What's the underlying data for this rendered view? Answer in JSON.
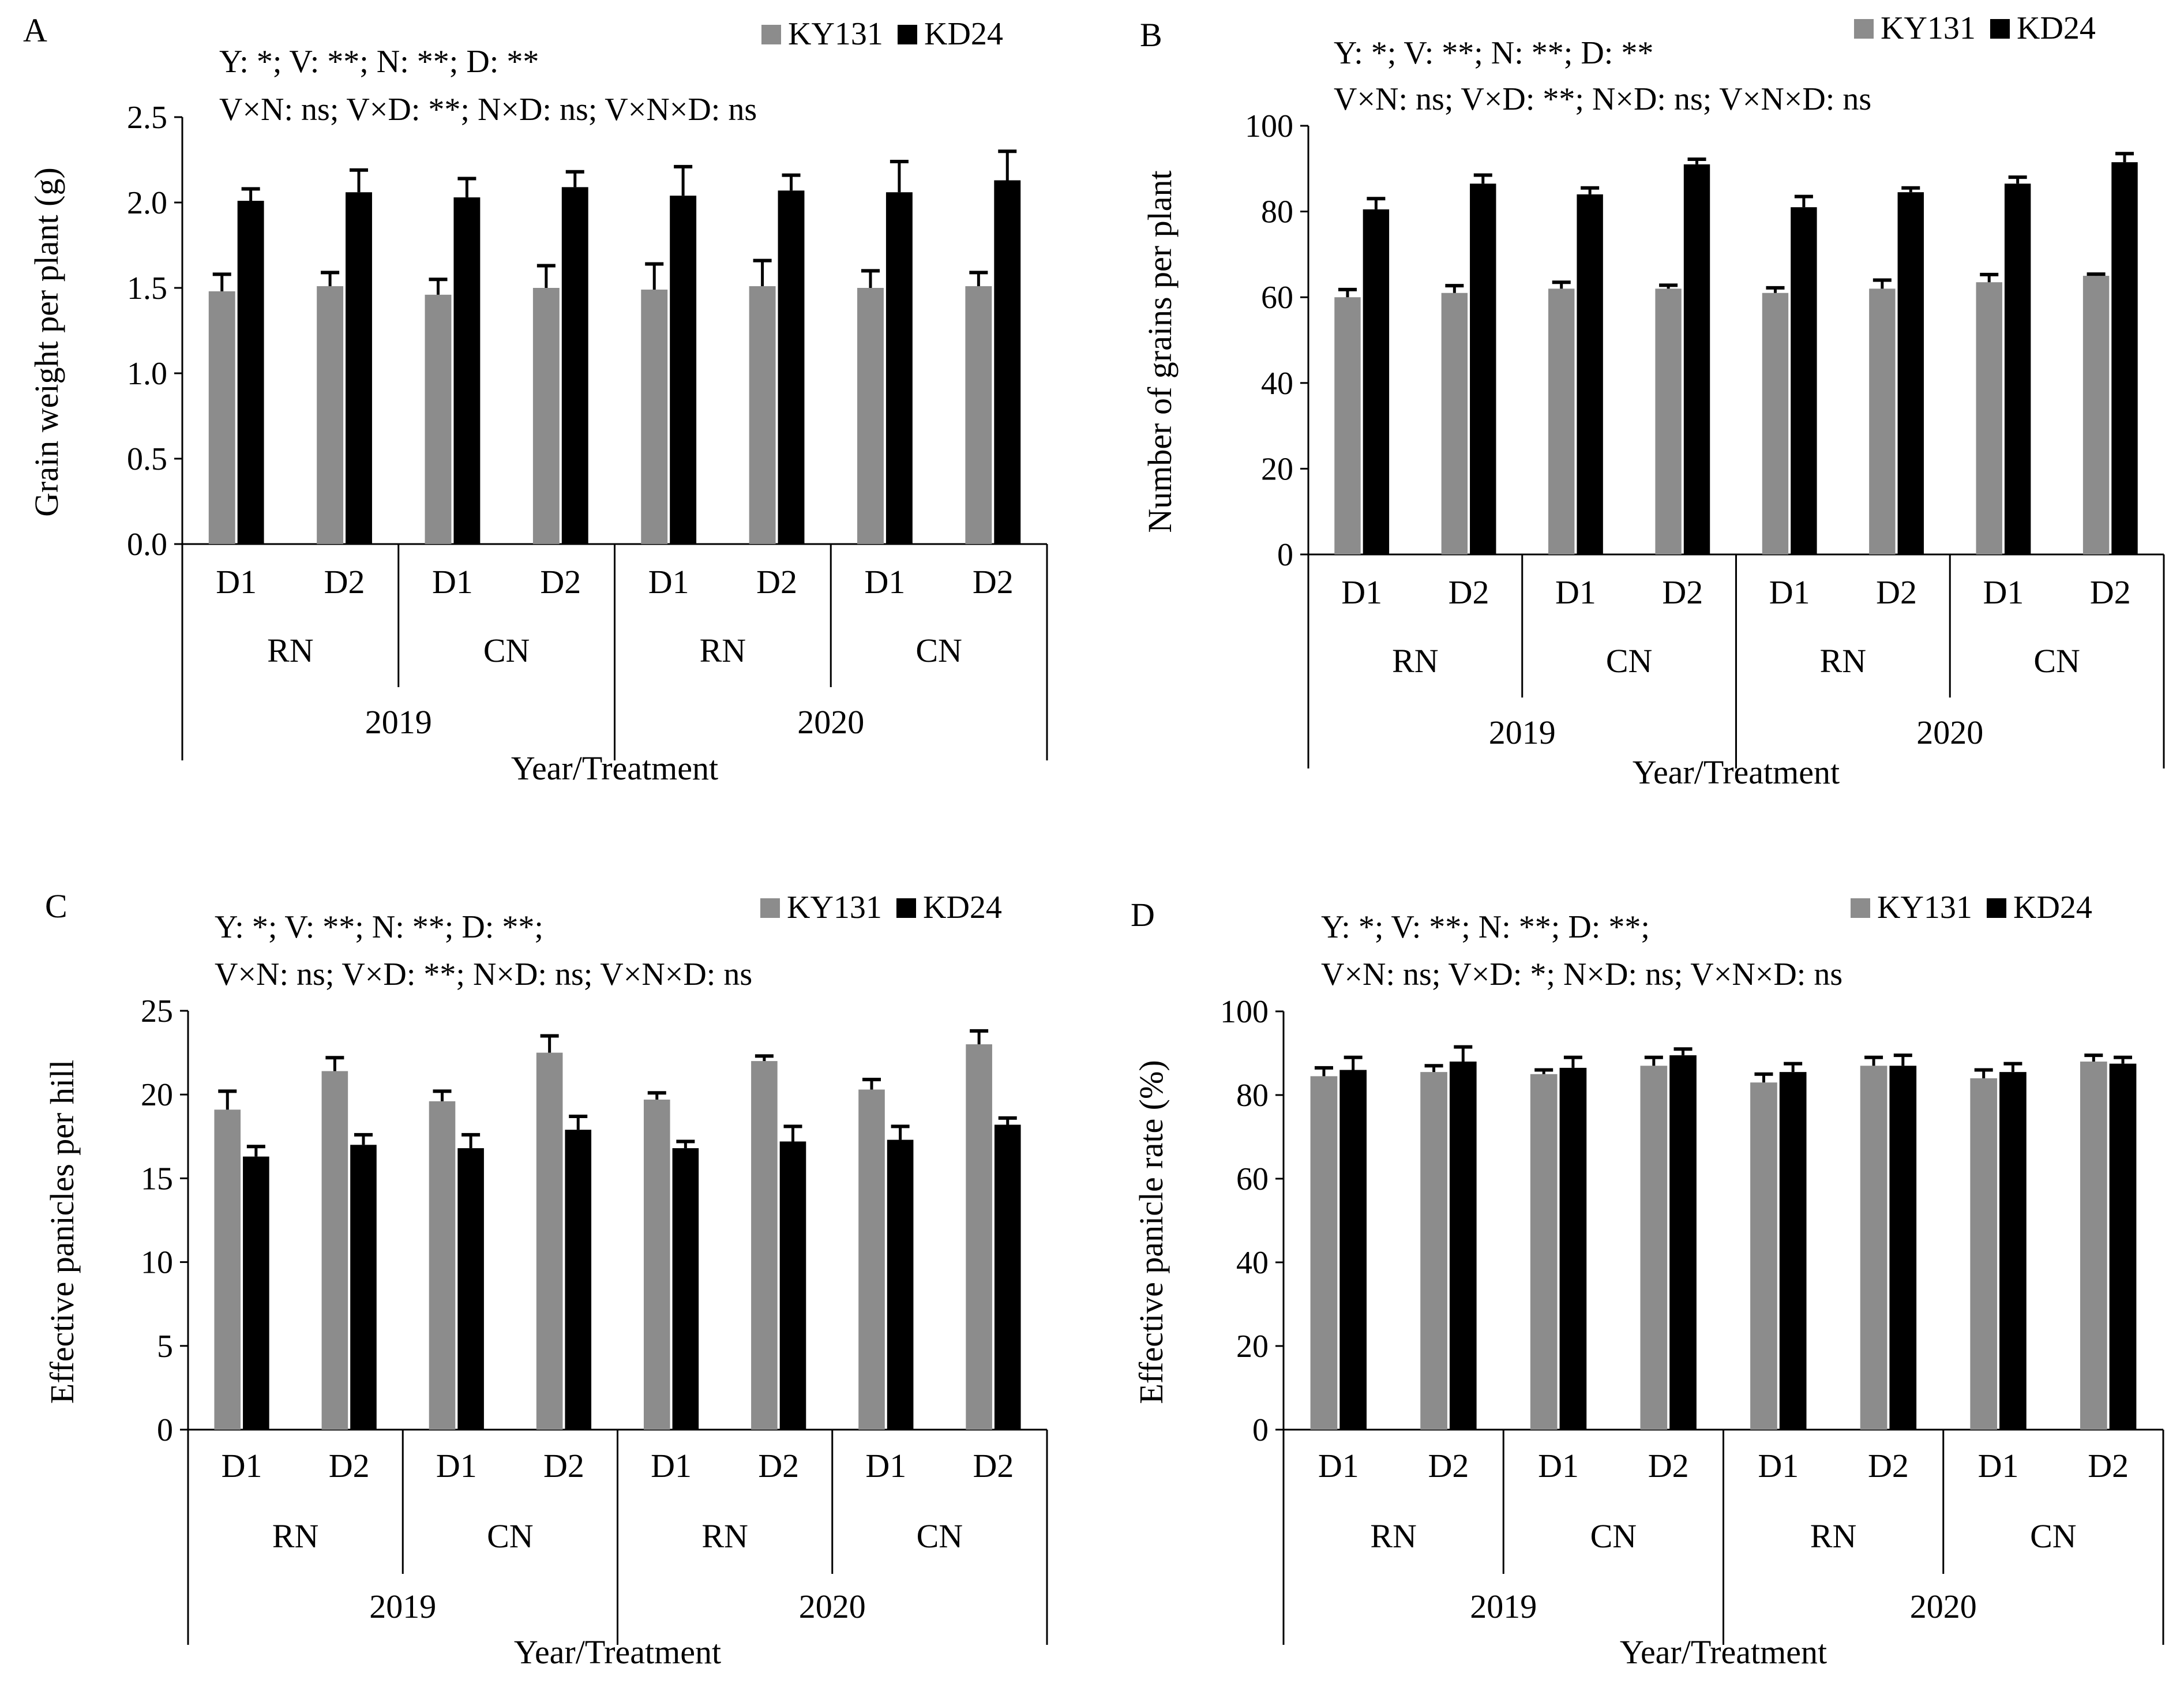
{
  "figure": {
    "series_names": [
      "KY131",
      "KD24"
    ],
    "colors": {
      "KY131": "#8c8c8c",
      "KD24": "#000000",
      "axis": "#000000"
    }
  },
  "chart_data": [
    {
      "panel": "A",
      "type": "bar",
      "title": "",
      "ylabel": "Grain weight per plant (g)",
      "xlabel": "Year/Treatment",
      "ylim": [
        0,
        2.5
      ],
      "yticks": [
        "0.0",
        "0.5",
        "1.0",
        "1.5",
        "2.0",
        "2.5"
      ],
      "annotation_lines": [
        "Y: *; V: **; N: **; D: **",
        "V×N: ns; V×D: **; N×D: ns; V×N×D: ns"
      ],
      "legend": [
        "KY131",
        "KD24"
      ],
      "categories": [
        "D1",
        "D2",
        "D1",
        "D2",
        "D1",
        "D2",
        "D1",
        "D2"
      ],
      "groups": [
        "RN",
        "CN",
        "RN",
        "CN"
      ],
      "years": [
        "2019",
        "2020"
      ],
      "series": [
        {
          "name": "KY131",
          "values": [
            1.48,
            1.51,
            1.46,
            1.5,
            1.49,
            1.51,
            1.5,
            1.51
          ],
          "errors": [
            0.1,
            0.08,
            0.09,
            0.13,
            0.15,
            0.15,
            0.1,
            0.08
          ]
        },
        {
          "name": "KD24",
          "values": [
            2.01,
            2.06,
            2.03,
            2.09,
            2.04,
            2.07,
            2.06,
            2.13
          ],
          "errors": [
            0.07,
            0.13,
            0.11,
            0.09,
            0.17,
            0.09,
            0.18,
            0.17
          ]
        }
      ]
    },
    {
      "panel": "B",
      "type": "bar",
      "title": "",
      "ylabel": "Number of grains per plant",
      "xlabel": "Year/Treatment",
      "ylim": [
        0,
        100
      ],
      "yticks": [
        "0",
        "20",
        "40",
        "60",
        "80",
        "100"
      ],
      "annotation_lines": [
        "Y: *; V: **; N: **; D: **",
        "V×N: ns; V×D: **; N×D: ns; V×N×D: ns"
      ],
      "legend": [
        "KY131",
        "KD24"
      ],
      "categories": [
        "D1",
        "D2",
        "D1",
        "D2",
        "D1",
        "D2",
        "D1",
        "D2"
      ],
      "groups": [
        "RN",
        "CN",
        "RN",
        "CN"
      ],
      "years": [
        "2019",
        "2020"
      ],
      "series": [
        {
          "name": "KY131",
          "values": [
            60,
            61,
            62,
            62,
            61,
            62,
            63.5,
            65
          ],
          "errors": [
            1.8,
            1.7,
            1.5,
            0.8,
            1.2,
            2.0,
            1.8,
            0.4
          ]
        },
        {
          "name": "KD24",
          "values": [
            80.5,
            86.5,
            84,
            91,
            81,
            84.5,
            86.5,
            91.5
          ],
          "errors": [
            2.5,
            2.0,
            1.5,
            1.2,
            2.5,
            1.0,
            1.5,
            2.0
          ]
        }
      ]
    },
    {
      "panel": "C",
      "type": "bar",
      "title": "",
      "ylabel": "Effective panicles per hill",
      "xlabel": "Year/Treatment",
      "ylim": [
        0,
        25
      ],
      "yticks": [
        "0",
        "5",
        "10",
        "15",
        "20",
        "25"
      ],
      "annotation_lines": [
        "Y: *; V: **; N: **; D: **;",
        "V×N: ns; V×D: **; N×D: ns; V×N×D: ns"
      ],
      "legend": [
        "KY131",
        "KD24"
      ],
      "categories": [
        "D1",
        "D2",
        "D1",
        "D2",
        "D1",
        "D2",
        "D1",
        "D2"
      ],
      "groups": [
        "RN",
        "CN",
        "RN",
        "CN"
      ],
      "years": [
        "2019",
        "2020"
      ],
      "series": [
        {
          "name": "KY131",
          "values": [
            19.1,
            21.4,
            19.6,
            22.5,
            19.7,
            22.0,
            20.3,
            23.0
          ],
          "errors": [
            1.1,
            0.8,
            0.6,
            1.0,
            0.4,
            0.3,
            0.6,
            0.8
          ]
        },
        {
          "name": "KD24",
          "values": [
            16.3,
            17.0,
            16.8,
            17.9,
            16.8,
            17.2,
            17.3,
            18.2
          ],
          "errors": [
            0.6,
            0.6,
            0.8,
            0.8,
            0.4,
            0.9,
            0.8,
            0.4
          ]
        }
      ]
    },
    {
      "panel": "D",
      "type": "bar",
      "title": "",
      "ylabel": "Effective panicle rate (%)",
      "xlabel": "Year/Treatment",
      "ylim": [
        0,
        100
      ],
      "yticks": [
        "0",
        "20",
        "40",
        "60",
        "80",
        "100"
      ],
      "annotation_lines": [
        "Y: *; V: **; N: **; D: **;",
        "V×N: ns; V×D: *; N×D: ns; V×N×D: ns"
      ],
      "legend": [
        "KY131",
        "KD24"
      ],
      "categories": [
        "D1",
        "D2",
        "D1",
        "D2",
        "D1",
        "D2",
        "D1",
        "D2"
      ],
      "groups": [
        "RN",
        "CN",
        "RN",
        "CN"
      ],
      "years": [
        "2019",
        "2020"
      ],
      "series": [
        {
          "name": "KY131",
          "values": [
            84.5,
            85.5,
            85,
            87,
            83,
            87,
            84,
            88
          ],
          "errors": [
            2.0,
            1.5,
            1.0,
            2.0,
            2.0,
            2.0,
            2.0,
            1.5
          ]
        },
        {
          "name": "KD24",
          "values": [
            86,
            88,
            86.5,
            89.5,
            85.5,
            87,
            85.5,
            87.5
          ],
          "errors": [
            3.0,
            3.5,
            2.5,
            1.5,
            2.0,
            2.5,
            2.0,
            1.5
          ]
        }
      ]
    }
  ]
}
